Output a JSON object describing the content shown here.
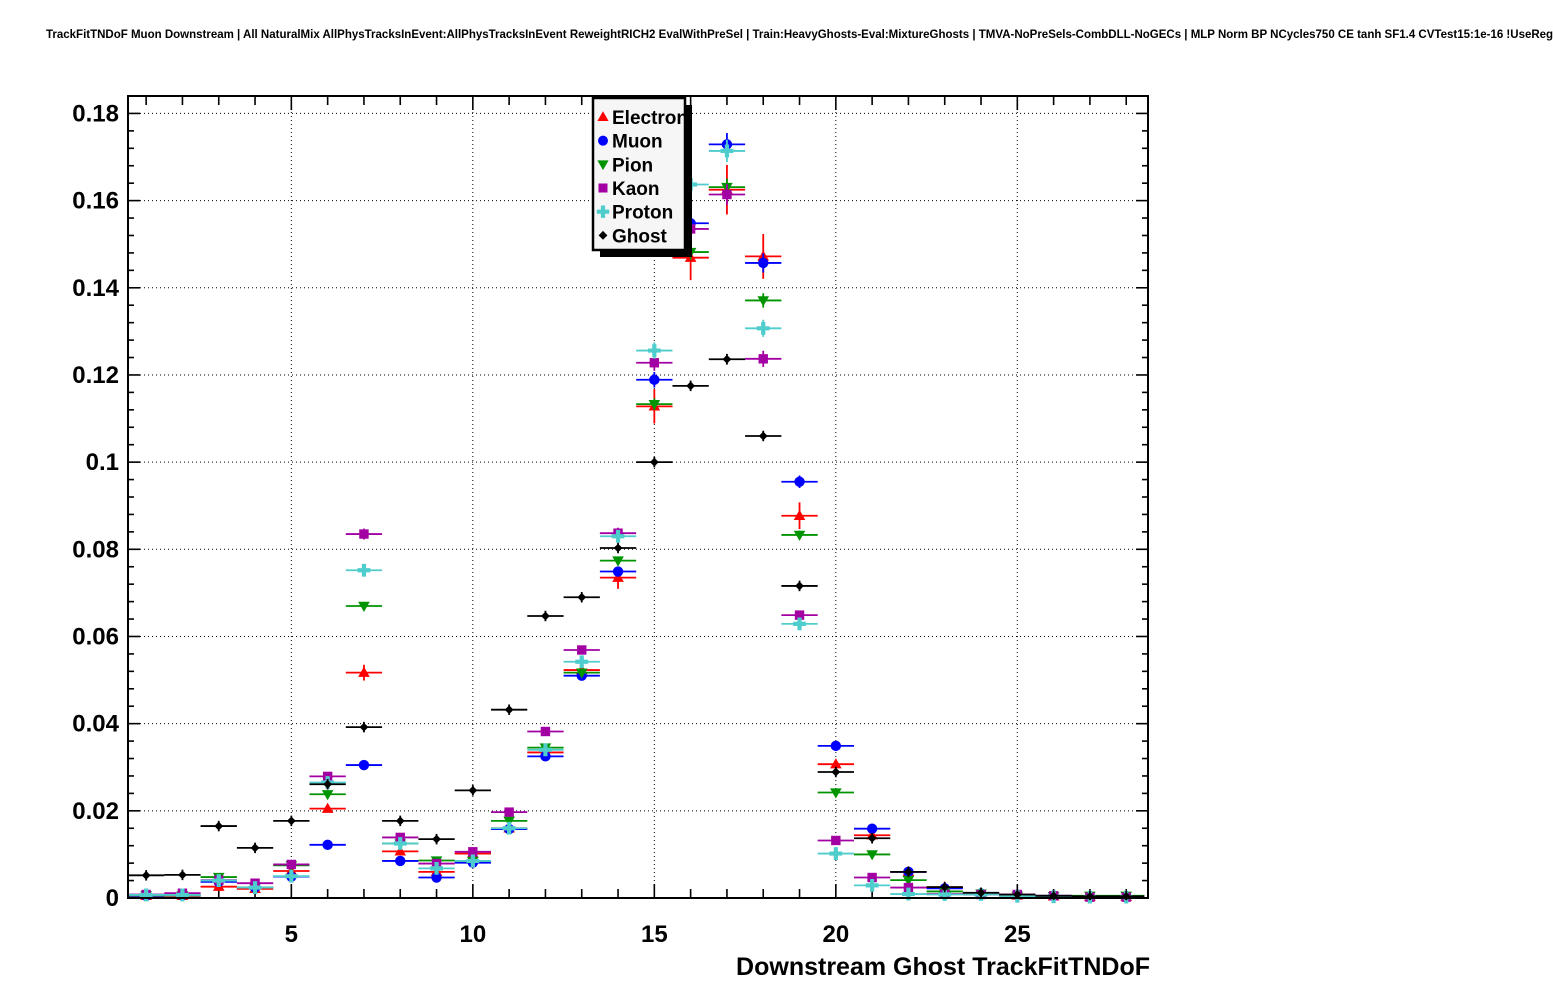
{
  "header": {
    "title": "TrackFitTNDoF Muon Downstream | All NaturalMix AllPhysTracksInEvent:AllPhysTracksInEvent ReweightRICH2 EvalWithPreSel | Train:HeavyGhosts-Eval:MixtureGhosts | TMVA-NoPreSels-CombDLL-NoGECs | MLP Norm BP NCycles750 CE tanh SF1.4 CVTest15:1e-16 !UseReg"
  },
  "chart_data": {
    "type": "scatter",
    "title": "TrackFitTNDoF Muon Downstream",
    "xlabel": "Downstream Ghost TrackFitTNDoF",
    "ylabel": "",
    "xlim": [
      0.5,
      28.6
    ],
    "ylim": [
      0,
      0.184
    ],
    "grid": "dotted grid at labeled ticks, on",
    "legend_position": "top-center",
    "x_ticks_labeled": [
      5,
      10,
      15,
      20,
      25
    ],
    "x_minor_tick_step": 1,
    "y_ticks": [
      0,
      0.02,
      0.04,
      0.06,
      0.08,
      0.1,
      0.12,
      0.14,
      0.16,
      0.18
    ],
    "y_tick_labels": [
      "0",
      "0.02",
      "0.04",
      "0.06",
      "0.08",
      "0.1",
      "0.12",
      "0.14",
      "0.16",
      "0.18"
    ],
    "y_minor_tick_step": 0.004,
    "x": [
      1,
      2,
      3,
      4,
      5,
      6,
      7,
      8,
      9,
      10,
      11,
      12,
      13,
      14,
      15,
      16,
      17,
      18,
      19,
      20,
      21,
      22,
      23,
      24,
      25,
      26,
      27,
      28
    ],
    "x_bin_halfwidth": 0.5,
    "series": [
      {
        "name": "Electron",
        "color": "#ff0000",
        "marker": "triangle-up",
        "yerr_frac": 0.035,
        "yerr_min": 0.0008,
        "values": [
          0.0005,
          0.0005,
          0.0026,
          0.0021,
          0.0062,
          0.0205,
          0.0517,
          0.0107,
          0.006,
          0.0102,
          0.016,
          0.0334,
          0.0523,
          0.0735,
          0.1128,
          0.1469,
          0.1625,
          0.1472,
          0.0877,
          0.0307,
          0.0144,
          0.006,
          0.0025,
          0.001,
          0.0006,
          0.0004,
          0.0003,
          0.0003
        ]
      },
      {
        "name": "Muon",
        "color": "#0000ff",
        "marker": "circle",
        "yerr_frac": 0.015,
        "yerr_min": 0.0005,
        "values": [
          0.0005,
          0.0006,
          0.0037,
          0.0024,
          0.0049,
          0.0122,
          0.0305,
          0.0085,
          0.0047,
          0.0081,
          0.0158,
          0.0325,
          0.051,
          0.0749,
          0.1189,
          0.1548,
          0.1729,
          0.1457,
          0.0955,
          0.0349,
          0.0159,
          0.006,
          0.0022,
          0.001,
          0.0007,
          0.0005,
          0.0002,
          0.0002
        ]
      },
      {
        "name": "Pion",
        "color": "#009400",
        "marker": "triangle-down",
        "yerr_frac": 0.012,
        "yerr_min": 0.0005,
        "values": [
          0.0006,
          0.0006,
          0.0048,
          0.0024,
          0.0075,
          0.0238,
          0.067,
          0.0125,
          0.0086,
          0.0085,
          0.0177,
          0.0345,
          0.0517,
          0.0774,
          0.1133,
          0.1482,
          0.1631,
          0.1371,
          0.0833,
          0.0242,
          0.01,
          0.0041,
          0.0015,
          0.001,
          0.0005,
          0.0004,
          0.0005,
          0.0005
        ]
      },
      {
        "name": "Kaon",
        "color": "#a300a3",
        "marker": "square",
        "yerr_frac": 0.015,
        "yerr_min": 0.0005,
        "values": [
          0.0008,
          0.0011,
          0.0041,
          0.0034,
          0.0077,
          0.0279,
          0.0835,
          0.0139,
          0.0079,
          0.0106,
          0.0197,
          0.0382,
          0.0569,
          0.0837,
          0.1228,
          0.1535,
          0.1614,
          0.1237,
          0.0649,
          0.0132,
          0.0047,
          0.0024,
          0.0009,
          0.0008,
          0.0008,
          0.0005,
          0.0002,
          0.0002
        ]
      },
      {
        "name": "Proton",
        "color": "#4fcdcd",
        "marker": "cross",
        "yerr_frac": 0.015,
        "yerr_min": 0.0005,
        "values": [
          0.0007,
          0.0007,
          0.004,
          0.0024,
          0.005,
          0.0265,
          0.0752,
          0.0125,
          0.0068,
          0.0085,
          0.016,
          0.034,
          0.0542,
          0.083,
          0.1256,
          0.1637,
          0.1714,
          0.1307,
          0.0629,
          0.0102,
          0.0029,
          0.0009,
          0.0008,
          0.0008,
          0.0004,
          0.0003,
          0.0002,
          0.0002
        ]
      },
      {
        "name": "Ghost",
        "color": "#000000",
        "marker": "diamond",
        "yerr_frac": 0.01,
        "yerr_min": 0.0012,
        "values": [
          0.0052,
          0.0053,
          0.0165,
          0.0115,
          0.0177,
          0.0261,
          0.0392,
          0.0177,
          0.0135,
          0.0247,
          0.0432,
          0.0647,
          0.069,
          0.0803,
          0.1,
          0.1175,
          0.1236,
          0.106,
          0.0716,
          0.0289,
          0.0137,
          0.006,
          0.0025,
          0.0012,
          0.0008,
          0.0005,
          0.0004,
          0.0004
        ]
      }
    ],
    "legend_entries": [
      "Electron",
      "Muon",
      "Pion",
      "Kaon",
      "Proton",
      "Ghost"
    ]
  }
}
